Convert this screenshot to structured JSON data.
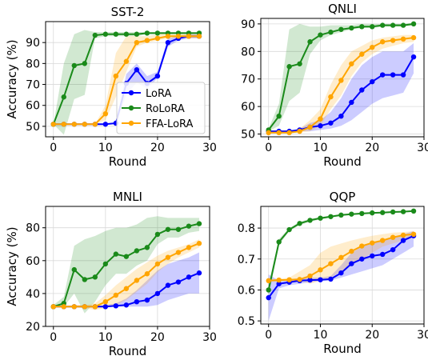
{
  "colors": {
    "LoRA": "#0000ff",
    "RoLoRA": "#1a8a1a",
    "FFA-LoRA": "#ffa500"
  },
  "legend": [
    "LoRA",
    "RoLoRA",
    "FFA-LoRA"
  ],
  "chart_data": [
    {
      "type": "line",
      "title": "SST-2",
      "xlabel": "Round",
      "ylabel": "Accuracy (%)",
      "xlim": [
        -1.5,
        30
      ],
      "ylim": [
        45,
        100
      ],
      "xticks": [
        "0",
        "10",
        "20",
        "30"
      ],
      "yticks": [
        "50",
        "60",
        "70",
        "80",
        "90"
      ],
      "legend_position": "center-right",
      "x": [
        0,
        2,
        4,
        6,
        8,
        10,
        12,
        14,
        16,
        18,
        20,
        22,
        24,
        26,
        28
      ],
      "series": [
        {
          "name": "LoRA",
          "values": [
            51,
            51,
            51,
            51,
            51,
            51,
            51.5,
            70.5,
            77,
            70.5,
            74,
            90,
            92,
            93,
            93
          ],
          "lower": [
            51,
            51,
            51,
            51,
            51,
            51,
            51,
            65,
            71,
            68,
            73,
            88,
            91,
            92,
            92
          ],
          "upper": [
            51,
            51,
            51,
            51,
            51,
            51,
            52,
            75,
            80,
            74,
            76,
            92,
            93,
            94,
            94
          ]
        },
        {
          "name": "RoLoRA",
          "values": [
            51,
            64,
            79,
            80,
            93.5,
            94,
            94,
            94,
            94,
            94.5,
            94.5,
            94.5,
            94.5,
            94.5,
            94.5
          ],
          "lower": [
            51,
            46,
            63,
            65,
            92,
            93,
            93,
            93,
            93,
            94,
            94,
            94,
            94,
            94,
            94
          ],
          "upper": [
            51,
            80,
            94,
            96,
            95,
            95,
            95,
            95,
            95,
            95,
            95,
            95,
            95,
            95,
            95
          ]
        },
        {
          "name": "FFA-LoRA",
          "values": [
            51,
            51,
            51,
            51,
            51,
            56,
            74,
            81,
            90,
            91,
            92,
            93,
            93,
            93,
            93
          ],
          "lower": [
            51,
            51,
            51,
            51,
            51,
            53,
            64,
            76,
            88,
            90,
            91,
            92,
            92,
            92,
            92
          ],
          "upper": [
            51,
            51,
            51,
            51,
            51,
            60,
            85,
            93,
            93,
            93,
            94,
            94,
            94,
            94,
            94
          ]
        }
      ]
    },
    {
      "type": "line",
      "title": "QNLI",
      "xlabel": "Round",
      "ylabel": "",
      "xlim": [
        -1.5,
        30
      ],
      "ylim": [
        49,
        92
      ],
      "xticks": [
        "0",
        "10",
        "20",
        "30"
      ],
      "yticks": [
        "50",
        "60",
        "70",
        "80",
        "90"
      ],
      "x": [
        0,
        2,
        4,
        6,
        8,
        10,
        12,
        14,
        16,
        18,
        20,
        22,
        24,
        26,
        28
      ],
      "series": [
        {
          "name": "LoRA",
          "values": [
            51,
            51,
            51,
            51.5,
            52.5,
            53,
            54,
            56.5,
            61.5,
            66,
            69,
            71.5,
            71.5,
            71.5,
            78
          ],
          "lower": [
            51,
            51,
            51,
            51,
            51,
            51.5,
            52,
            53,
            55,
            58,
            61,
            63,
            64,
            65,
            72
          ],
          "upper": [
            51,
            51,
            51,
            52,
            54,
            55,
            58,
            63,
            70,
            75,
            78,
            80,
            80,
            80,
            83
          ]
        },
        {
          "name": "RoLoRA",
          "values": [
            51.5,
            56.5,
            74.5,
            75.5,
            83.5,
            86,
            87,
            88,
            88.5,
            89,
            89,
            89.5,
            89.5,
            89.5,
            90
          ],
          "lower": [
            51,
            53,
            62,
            65,
            79,
            84,
            86,
            87,
            88,
            88.5,
            88.5,
            89,
            89,
            89,
            89.5
          ],
          "upper": [
            52,
            61,
            88,
            90,
            89,
            89,
            89.5,
            89.5,
            89.5,
            90,
            90,
            90,
            90,
            90,
            90.5
          ]
        },
        {
          "name": "FFA-LoRA",
          "values": [
            50.5,
            50.5,
            50.5,
            51,
            52.5,
            55.5,
            63.5,
            69.5,
            75.5,
            79,
            81.5,
            83.5,
            84,
            84.5,
            85
          ],
          "lower": [
            50.5,
            50.5,
            50.5,
            50.5,
            51,
            53,
            59,
            64,
            71,
            76,
            79,
            81,
            82,
            83,
            83.5
          ],
          "upper": [
            50.5,
            50.5,
            51,
            52,
            55,
            59,
            68,
            75,
            80,
            82,
            84,
            85,
            85.5,
            86,
            86
          ]
        }
      ]
    },
    {
      "type": "line",
      "title": "MNLI",
      "xlabel": "Round",
      "ylabel": "Accuracy (%)",
      "xlim": [
        -1.5,
        30
      ],
      "ylim": [
        20,
        93
      ],
      "xticks": [
        "0",
        "10",
        "20",
        "30"
      ],
      "yticks": [
        "20",
        "40",
        "60",
        "80"
      ],
      "x": [
        0,
        2,
        4,
        6,
        8,
        10,
        12,
        14,
        16,
        18,
        20,
        22,
        24,
        26,
        28
      ],
      "series": [
        {
          "name": "LoRA",
          "values": [
            32,
            32,
            32,
            32,
            32,
            32,
            32.5,
            33,
            35,
            36,
            40,
            45,
            47,
            50,
            52.5
          ],
          "lower": [
            32,
            32,
            32,
            32,
            32,
            32,
            32,
            32,
            32,
            32,
            33,
            36,
            38,
            40,
            40
          ],
          "upper": [
            32,
            32,
            32,
            32,
            32,
            33,
            34,
            37,
            42,
            48,
            54,
            58,
            60,
            62,
            65
          ]
        },
        {
          "name": "RoLoRA",
          "values": [
            32,
            34,
            54.5,
            48.5,
            50,
            58,
            64,
            62.5,
            66,
            68,
            76,
            79,
            79,
            81,
            82.5
          ],
          "lower": [
            32,
            32,
            40,
            28,
            35,
            45,
            52,
            52,
            57,
            60,
            70,
            74,
            74,
            77,
            78
          ],
          "upper": [
            33,
            38,
            69,
            73,
            75,
            78,
            80,
            80,
            82,
            86,
            87,
            86,
            86,
            86,
            86
          ]
        },
        {
          "name": "FFA-LoRA",
          "values": [
            32,
            32,
            32,
            32,
            32,
            35,
            39,
            43,
            48,
            52,
            58,
            62,
            65,
            68,
            70.5
          ],
          "lower": [
            32,
            32,
            32,
            31,
            30,
            31,
            33,
            36,
            41,
            46,
            53,
            58,
            62,
            65,
            68
          ],
          "upper": [
            32,
            32,
            33,
            33,
            34,
            39,
            45,
            50,
            55,
            59,
            63,
            66,
            68,
            70,
            73
          ]
        }
      ]
    },
    {
      "type": "line",
      "title": "QQP",
      "xlabel": "Round",
      "ylabel": "",
      "xlim": [
        -1.5,
        30
      ],
      "ylim": [
        0.49,
        0.87
      ],
      "xticks": [
        "0",
        "10",
        "20",
        "30"
      ],
      "yticks": [
        "0.5",
        "0.6",
        "0.7",
        "0.8"
      ],
      "x": [
        0,
        2,
        4,
        6,
        8,
        10,
        12,
        14,
        16,
        18,
        20,
        22,
        24,
        26,
        28
      ],
      "series": [
        {
          "name": "LoRA",
          "values": [
            0.575,
            0.62,
            0.625,
            0.63,
            0.632,
            0.633,
            0.635,
            0.655,
            0.685,
            0.7,
            0.71,
            0.715,
            0.73,
            0.76,
            0.775
          ],
          "lower": [
            0.5,
            0.605,
            0.615,
            0.62,
            0.625,
            0.628,
            0.63,
            0.64,
            0.65,
            0.66,
            0.67,
            0.68,
            0.7,
            0.72,
            0.74
          ],
          "upper": [
            0.65,
            0.63,
            0.635,
            0.638,
            0.64,
            0.64,
            0.645,
            0.68,
            0.72,
            0.74,
            0.75,
            0.76,
            0.77,
            0.78,
            0.79
          ]
        },
        {
          "name": "RoLoRA",
          "values": [
            0.6,
            0.755,
            0.795,
            0.815,
            0.825,
            0.832,
            0.837,
            0.842,
            0.845,
            0.847,
            0.849,
            0.85,
            0.852,
            0.853,
            0.855
          ],
          "lower": [
            0.58,
            0.745,
            0.79,
            0.81,
            0.82,
            0.828,
            0.834,
            0.839,
            0.843,
            0.845,
            0.847,
            0.848,
            0.85,
            0.851,
            0.853
          ],
          "upper": [
            0.62,
            0.765,
            0.8,
            0.82,
            0.83,
            0.836,
            0.84,
            0.845,
            0.847,
            0.849,
            0.851,
            0.852,
            0.854,
            0.855,
            0.857
          ]
        },
        {
          "name": "FFA-LoRA",
          "values": [
            0.63,
            0.632,
            0.633,
            0.634,
            0.645,
            0.665,
            0.685,
            0.705,
            0.725,
            0.742,
            0.752,
            0.76,
            0.77,
            0.777,
            0.78
          ],
          "lower": [
            0.625,
            0.628,
            0.63,
            0.63,
            0.62,
            0.63,
            0.64,
            0.66,
            0.68,
            0.7,
            0.72,
            0.74,
            0.75,
            0.76,
            0.77
          ],
          "upper": [
            0.635,
            0.636,
            0.64,
            0.66,
            0.68,
            0.72,
            0.74,
            0.75,
            0.76,
            0.768,
            0.775,
            0.78,
            0.785,
            0.787,
            0.79
          ]
        }
      ]
    }
  ]
}
